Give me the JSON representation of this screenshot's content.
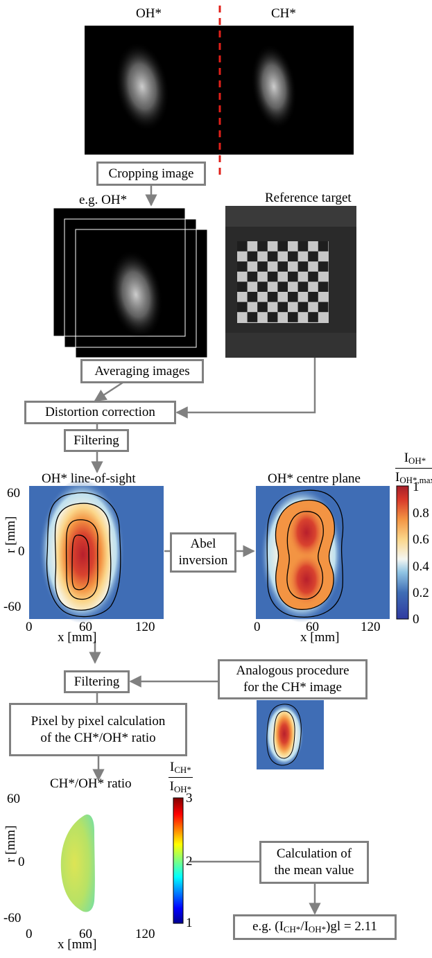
{
  "top": {
    "label_oh": "OH*",
    "label_ch": "CH*"
  },
  "boxes": {
    "cropping": "Cropping image",
    "averaging": "Averaging images",
    "distortion": "Distortion correction",
    "filtering1": "Filtering",
    "abel_line1": "Abel",
    "abel_line2": "inversion",
    "filtering2": "Filtering",
    "analogous_line1": "Analogous procedure",
    "analogous_line2": "for the CH* image",
    "pixel_line1": "Pixel by pixel calculation",
    "pixel_line2": "of the CH*/OH* ratio",
    "mean_line1": "Calculation of",
    "mean_line2": "the mean value",
    "result_prefix": "e.g. (I",
    "result_sub1": "CH*",
    "result_mid": "/I",
    "result_sub2": "OH*",
    "result_suffix": ")gl = 2.11"
  },
  "labels": {
    "eg_oh": "e.g. OH*",
    "reference": "Reference target",
    "los_title": "OH* line-of-sight",
    "centre_title": "OH* centre plane",
    "ratio_title": "CH*/OH* ratio"
  },
  "axes": {
    "ylabel": "r [mm]",
    "xlabel": "x [mm]",
    "yticks": [
      "60",
      "0",
      "-60"
    ],
    "xticks": [
      "0",
      "60",
      "120"
    ]
  },
  "colorbar1": {
    "num_main": "I",
    "num_sub": "OH*",
    "den_main": "I",
    "den_sub": "OH*,max",
    "ticks": [
      "1",
      "0.8",
      "0.6",
      "0.4",
      "0.2",
      "0"
    ]
  },
  "colorbar2": {
    "num_main": "I",
    "num_sub": "CH*",
    "den_main": "I",
    "den_sub": "OH*",
    "ticks": [
      "3",
      "2",
      "1"
    ]
  },
  "colors": {
    "arrow": "#808080",
    "divider": "#e0201a",
    "field_bg": "#3f6db5",
    "ratio_fill": "#c9e65a"
  }
}
